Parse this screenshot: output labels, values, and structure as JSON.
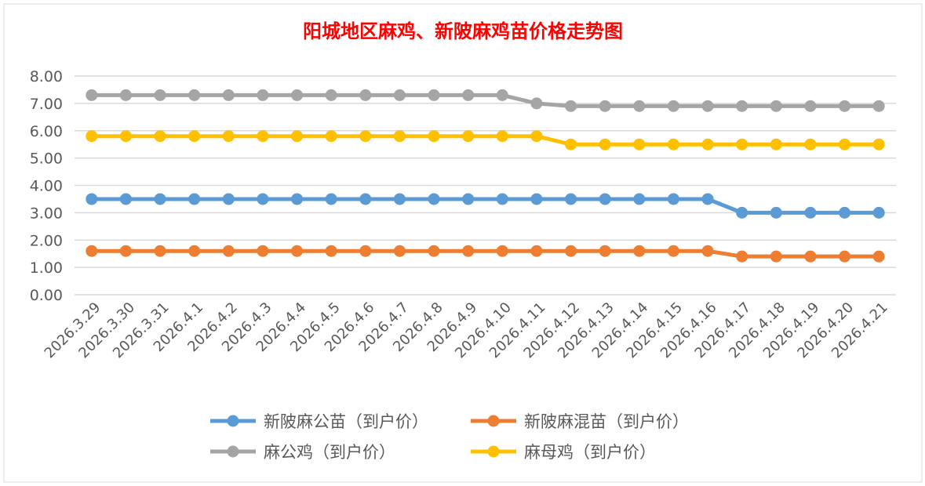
{
  "chart_data": {
    "type": "line",
    "title": "阳城地区麻鸡、新陂麻鸡苗价格走势图",
    "xlabel": "",
    "ylabel": "",
    "ylim": [
      0,
      8
    ],
    "yticks": [
      "0.00",
      "1.00",
      "2.00",
      "3.00",
      "4.00",
      "5.00",
      "6.00",
      "7.00",
      "8.00"
    ],
    "grid": true,
    "legend_position": "bottom",
    "categories": [
      "2026.3.29",
      "2026.3.30",
      "2026.3.31",
      "2026.4.1",
      "2026.4.2",
      "2026.4.3",
      "2026.4.4",
      "2026.4.5",
      "2026.4.6",
      "2026.4.7",
      "2026.4.8",
      "2026.4.9",
      "2026.4.10",
      "2026.4.11",
      "2026.4.12",
      "2026.4.13",
      "2026.4.14",
      "2026.4.15",
      "2026.4.16",
      "2026.4.17",
      "2026.4.18",
      "2026.4.19",
      "2026.4.20",
      "2026.4.21"
    ],
    "series": [
      {
        "name": "新陂麻公苗（到户价）",
        "color": "#5b9bd5",
        "values": [
          3.5,
          3.5,
          3.5,
          3.5,
          3.5,
          3.5,
          3.5,
          3.5,
          3.5,
          3.5,
          3.5,
          3.5,
          3.5,
          3.5,
          3.5,
          3.5,
          3.5,
          3.5,
          3.5,
          3.0,
          3.0,
          3.0,
          3.0,
          3.0
        ]
      },
      {
        "name": "新陂麻混苗（到户价）",
        "color": "#ed7d31",
        "values": [
          1.6,
          1.6,
          1.6,
          1.6,
          1.6,
          1.6,
          1.6,
          1.6,
          1.6,
          1.6,
          1.6,
          1.6,
          1.6,
          1.6,
          1.6,
          1.6,
          1.6,
          1.6,
          1.6,
          1.4,
          1.4,
          1.4,
          1.4,
          1.4
        ]
      },
      {
        "name": "麻公鸡（到户价）",
        "color": "#a5a5a5",
        "values": [
          7.3,
          7.3,
          7.3,
          7.3,
          7.3,
          7.3,
          7.3,
          7.3,
          7.3,
          7.3,
          7.3,
          7.3,
          7.3,
          7.0,
          6.9,
          6.9,
          6.9,
          6.9,
          6.9,
          6.9,
          6.9,
          6.9,
          6.9,
          6.9
        ]
      },
      {
        "name": "麻母鸡（到户价）",
        "color": "#ffc000",
        "values": [
          5.8,
          5.8,
          5.8,
          5.8,
          5.8,
          5.8,
          5.8,
          5.8,
          5.8,
          5.8,
          5.8,
          5.8,
          5.8,
          5.8,
          5.5,
          5.5,
          5.5,
          5.5,
          5.5,
          5.5,
          5.5,
          5.5,
          5.5,
          5.5
        ]
      }
    ]
  }
}
